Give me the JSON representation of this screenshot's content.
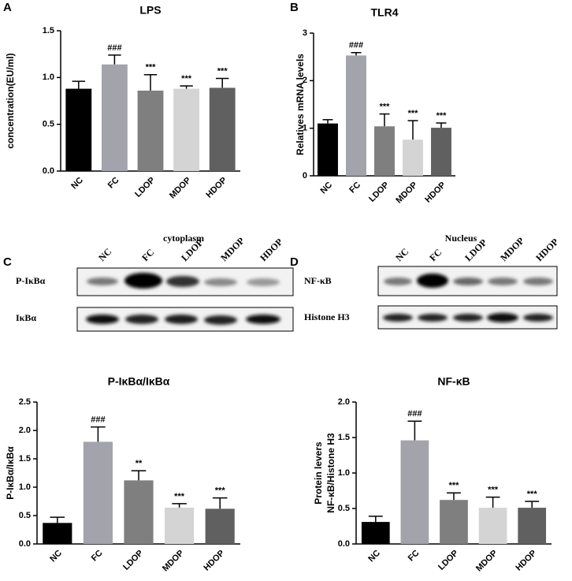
{
  "panel_labels": [
    "A",
    "B",
    "C",
    "D"
  ],
  "blots": [
    {
      "title": "cytoplasm",
      "lanes": [
        "NC",
        "FC",
        "LDOP",
        "MDOP",
        "HDOP"
      ],
      "rows": [
        "P-IκBα",
        "IκBα"
      ]
    },
    {
      "title": "Nucleus",
      "lanes": [
        "NC",
        "FC",
        "LDOP",
        "MDOP",
        "HDOP"
      ],
      "rows": [
        "NF-κB",
        "Histone H3"
      ]
    }
  ],
  "chart_data": [
    {
      "type": "bar",
      "title": "LPS",
      "ylabel": "concentration(EU/ml)",
      "categories": [
        "NC",
        "FC",
        "LDOP",
        "MDOP",
        "HDOP"
      ],
      "values": [
        0.88,
        1.14,
        0.86,
        0.88,
        0.89
      ],
      "errors": [
        0.08,
        0.1,
        0.17,
        0.03,
        0.1
      ],
      "annotations": [
        null,
        "###",
        "***",
        "***",
        "***"
      ],
      "colors": [
        "#000000",
        "#a3a3ab",
        "#7f7f7f",
        "#d4d4d4",
        "#606060"
      ],
      "ylim": [
        0,
        1.5
      ],
      "yticks": [
        {
          "value": 0,
          "label": "0.0"
        },
        0.5,
        {
          "value": 1,
          "label": "1.0"
        },
        1.5
      ]
    },
    {
      "type": "bar",
      "title": "TLR4",
      "ylabel": "Relatives mRNA levels",
      "categories": [
        "NC",
        "FC",
        "LDOP",
        "MDOP",
        "HDOP"
      ],
      "values": [
        1.1,
        2.53,
        1.04,
        0.76,
        1.01
      ],
      "errors": [
        0.08,
        0.06,
        0.26,
        0.4,
        0.1
      ],
      "annotations": [
        null,
        "###",
        "***",
        "***",
        "***"
      ],
      "colors": [
        "#000000",
        "#a3a3ab",
        "#7f7f7f",
        "#d4d4d4",
        "#606060"
      ],
      "ylim": [
        0,
        3
      ],
      "yticks": [
        0,
        1,
        2,
        3
      ]
    },
    {
      "type": "bar",
      "title": "P-IκBα/IκBα",
      "ylabel": "P-IκBα/IκBα",
      "categories": [
        "NC",
        "FC",
        "LDOP",
        "MDOP",
        "HDOP"
      ],
      "values": [
        0.37,
        1.8,
        1.12,
        0.64,
        0.62
      ],
      "errors": [
        0.1,
        0.26,
        0.17,
        0.07,
        0.19
      ],
      "annotations": [
        null,
        "###",
        "**",
        "***",
        "***"
      ],
      "colors": [
        "#000000",
        "#a3a3ab",
        "#7f7f7f",
        "#d4d4d4",
        "#606060"
      ],
      "ylim": [
        0,
        2.5
      ],
      "yticks": [
        {
          "value": 0,
          "label": "0.0"
        },
        0.5,
        {
          "value": 1,
          "label": "1.0"
        },
        1.5,
        {
          "value": 2,
          "label": "2.0"
        },
        2.5
      ]
    },
    {
      "type": "bar",
      "title": "NF-κB",
      "ylabel": [
        "Protein levers",
        "NF-κB/Histone H3"
      ],
      "categories": [
        "NC",
        "FC",
        "LDOP",
        "MDOP",
        "HDOP"
      ],
      "values": [
        0.31,
        1.46,
        0.62,
        0.51,
        0.51
      ],
      "errors": [
        0.08,
        0.27,
        0.1,
        0.15,
        0.09
      ],
      "annotations": [
        null,
        "###",
        "***",
        "***",
        "***"
      ],
      "colors": [
        "#000000",
        "#a3a3ab",
        "#7f7f7f",
        "#d4d4d4",
        "#606060"
      ],
      "ylim": [
        0,
        2
      ],
      "yticks": [
        {
          "value": 0,
          "label": "0.0"
        },
        0.5,
        {
          "value": 1,
          "label": "1.0"
        },
        1.5,
        {
          "value": 2,
          "label": "2.0"
        }
      ]
    }
  ]
}
